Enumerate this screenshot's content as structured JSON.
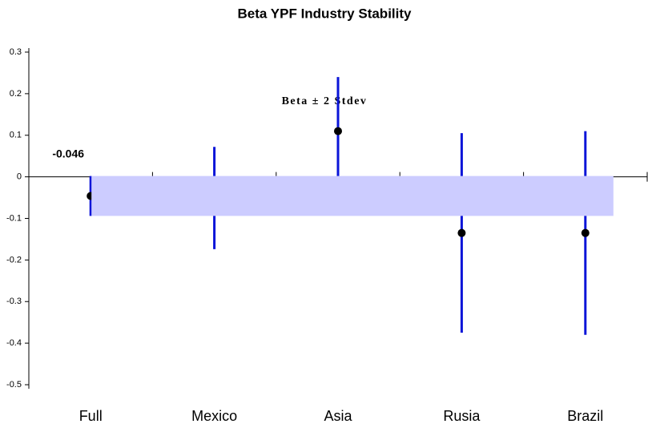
{
  "chart_data": {
    "type": "errorbar",
    "title": "Beta YPF Industry Stability",
    "annotation": "Beta ± 2 Stdev",
    "categories": [
      "Full",
      "Mexico",
      "Asia",
      "Rusia",
      "Brazil"
    ],
    "values": [
      -0.046,
      -0.051,
      0.11,
      -0.135,
      -0.135
    ],
    "errors": [
      0.048,
      0.123,
      0.13,
      0.24,
      0.245
    ],
    "color": "#0a14d8",
    "marker_color": "#000000",
    "band_color": "#ccccff",
    "ylim": [
      -0.5,
      0.3
    ],
    "yticks": [
      0.3,
      0.2,
      0.1,
      0,
      -0.1,
      -0.2,
      -0.3,
      -0.4,
      -0.5
    ]
  }
}
